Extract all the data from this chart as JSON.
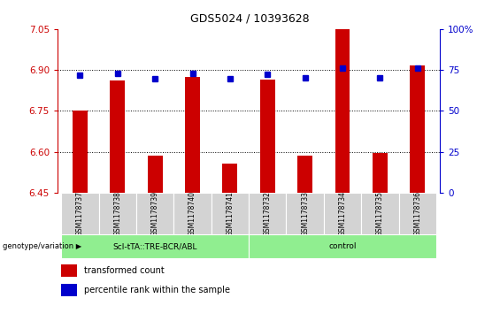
{
  "title": "GDS5024 / 10393628",
  "samples": [
    "GSM1178737",
    "GSM1178738",
    "GSM1178739",
    "GSM1178740",
    "GSM1178741",
    "GSM1178732",
    "GSM1178733",
    "GSM1178734",
    "GSM1178735",
    "GSM1178736"
  ],
  "red_values": [
    6.75,
    6.86,
    6.585,
    6.875,
    6.555,
    6.865,
    6.585,
    7.05,
    6.595,
    6.915
  ],
  "blue_values": [
    71.8,
    72.8,
    69.5,
    72.7,
    69.5,
    72.5,
    70.0,
    76.0,
    70.0,
    76.0
  ],
  "ylim_left": [
    6.45,
    7.05
  ],
  "ylim_right": [
    0,
    100
  ],
  "yticks_left": [
    6.45,
    6.6,
    6.75,
    6.9,
    7.05
  ],
  "yticks_right": [
    0,
    25,
    50,
    75,
    100
  ],
  "group1_label": "ScI-tTA::TRE-BCR/ABL",
  "group2_label": "control",
  "group1_count": 5,
  "group2_count": 5,
  "legend_label1": "transformed count",
  "legend_label2": "percentile rank within the sample",
  "genotype_label": "genotype/variation",
  "bar_color": "#cc0000",
  "dot_color": "#0000cc",
  "group_bg": "#90ee90",
  "sample_bg": "#d3d3d3",
  "label_color_left": "#cc0000",
  "label_color_right": "#0000cc",
  "bar_width": 0.4
}
